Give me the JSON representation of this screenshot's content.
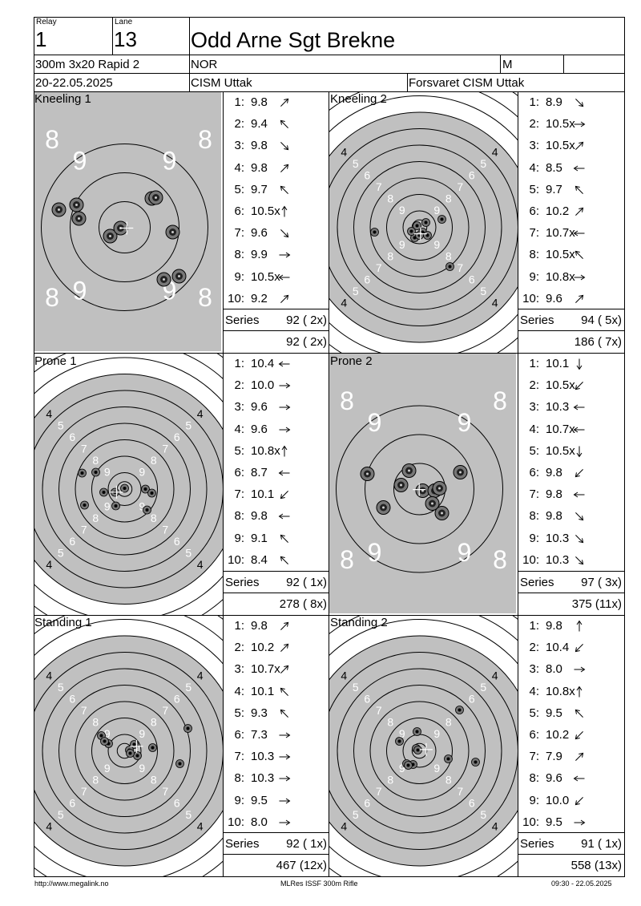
{
  "header": {
    "relay_label": "Relay",
    "relay_value": "1",
    "lane_label": "Lane",
    "lane_value": "13",
    "shooter_name": "Odd Arne Sgt Brekne",
    "event": "300m 3x20 Rapid 2",
    "nation": "NOR",
    "gender": "M",
    "dates": "20-22.05.2025",
    "competition": "CISM Uttak",
    "organizer": "Forsvaret CISM Uttak"
  },
  "series_label": "Series",
  "targets": [
    {
      "title": "Kneeling 1",
      "style": "zoom",
      "shots": [
        {
          "n": "1:",
          "v": "9.8",
          "dir": "ne"
        },
        {
          "n": "2:",
          "v": "9.4",
          "dir": "nw"
        },
        {
          "n": "3:",
          "v": "9.8",
          "dir": "se"
        },
        {
          "n": "4:",
          "v": "9.8",
          "dir": "ne"
        },
        {
          "n": "5:",
          "v": "9.7",
          "dir": "nw"
        },
        {
          "n": "6:",
          "v": "10.5x",
          "dir": "n"
        },
        {
          "n": "7:",
          "v": "9.6",
          "dir": "se"
        },
        {
          "n": "8:",
          "v": "9.9",
          "dir": "e"
        },
        {
          "n": "9:",
          "v": "10.5x",
          "dir": "w"
        },
        {
          "n": "10:",
          "v": "9.2",
          "dir": "ne"
        }
      ],
      "series_total": "92 ( 2x)",
      "cumulative": "92 ( 2x)",
      "hits": [
        [
          -82,
          -22
        ],
        [
          -60,
          -28
        ],
        [
          -57,
          -11
        ],
        [
          34,
          -36
        ],
        [
          39,
          -37
        ],
        [
          -18,
          11
        ],
        [
          60,
          6
        ],
        [
          -5,
          1
        ],
        [
          49,
          65
        ],
        [
          68,
          61
        ]
      ]
    },
    {
      "title": "Kneeling 2",
      "style": "full",
      "shots": [
        {
          "n": "1:",
          "v": "8.9",
          "dir": "se"
        },
        {
          "n": "2:",
          "v": "10.5x",
          "dir": "e"
        },
        {
          "n": "3:",
          "v": "10.5x",
          "dir": "ne"
        },
        {
          "n": "4:",
          "v": "8.5",
          "dir": "w"
        },
        {
          "n": "5:",
          "v": "9.7",
          "dir": "nw"
        },
        {
          "n": "6:",
          "v": "10.2",
          "dir": "ne"
        },
        {
          "n": "7:",
          "v": "10.7x",
          "dir": "w"
        },
        {
          "n": "8:",
          "v": "10.5x",
          "dir": "nw"
        },
        {
          "n": "9:",
          "v": "10.8x",
          "dir": "e"
        },
        {
          "n": "10:",
          "v": "9.6",
          "dir": "ne"
        }
      ],
      "series_total": "94 ( 5x)",
      "cumulative": "186 ( 7x)",
      "hits": [
        [
          38,
          49
        ],
        [
          -6,
          13
        ],
        [
          8,
          -6
        ],
        [
          -56,
          6
        ],
        [
          28,
          -10
        ],
        [
          4,
          6
        ],
        [
          0,
          10
        ],
        [
          -10,
          5
        ],
        [
          10,
          10
        ],
        [
          -3,
          -2
        ]
      ]
    },
    {
      "title": "Prone 1",
      "style": "full",
      "shots": [
        {
          "n": "1:",
          "v": "10.4",
          "dir": "w"
        },
        {
          "n": "2:",
          "v": "10.0",
          "dir": "e"
        },
        {
          "n": "3:",
          "v": "9.6",
          "dir": "e"
        },
        {
          "n": "4:",
          "v": "9.6",
          "dir": "e"
        },
        {
          "n": "5:",
          "v": "10.8x",
          "dir": "n"
        },
        {
          "n": "6:",
          "v": "8.7",
          "dir": "w"
        },
        {
          "n": "7:",
          "v": "10.1",
          "dir": "sw"
        },
        {
          "n": "8:",
          "v": "9.8",
          "dir": "w"
        },
        {
          "n": "9:",
          "v": "9.1",
          "dir": "nw"
        },
        {
          "n": "10:",
          "v": "8.4",
          "dir": "nw"
        }
      ],
      "series_total": "92 ( 1x)",
      "cumulative": "278 ( 8x)",
      "hits": [
        [
          -53,
          -20
        ],
        [
          -36,
          -21
        ],
        [
          -50,
          20
        ],
        [
          -26,
          4
        ],
        [
          -12,
          4
        ],
        [
          0,
          -1
        ],
        [
          26,
          0
        ],
        [
          34,
          5
        ],
        [
          28,
          26
        ],
        [
          -11,
          21
        ]
      ]
    },
    {
      "title": "Prone 2",
      "style": "zoom",
      "shots": [
        {
          "n": "1:",
          "v": "10.1",
          "dir": "s"
        },
        {
          "n": "2:",
          "v": "10.5x",
          "dir": "sw"
        },
        {
          "n": "3:",
          "v": "10.3",
          "dir": "w"
        },
        {
          "n": "4:",
          "v": "10.7x",
          "dir": "w"
        },
        {
          "n": "5:",
          "v": "10.5x",
          "dir": "s"
        },
        {
          "n": "6:",
          "v": "9.8",
          "dir": "sw"
        },
        {
          "n": "7:",
          "v": "9.8",
          "dir": "w"
        },
        {
          "n": "8:",
          "v": "9.8",
          "dir": "se"
        },
        {
          "n": "9:",
          "v": "10.3",
          "dir": "se"
        },
        {
          "n": "10:",
          "v": "10.3",
          "dir": "se"
        }
      ],
      "series_total": "97 ( 3x)",
      "cumulative": "375 (11x)",
      "hits": [
        [
          -65,
          -19
        ],
        [
          -13,
          -23
        ],
        [
          -23,
          -5
        ],
        [
          51,
          -21
        ],
        [
          4,
          2
        ],
        [
          19,
          2
        ],
        [
          25,
          -1
        ],
        [
          16,
          18
        ],
        [
          -45,
          23
        ],
        [
          28,
          30
        ]
      ]
    },
    {
      "title": "Standing 1",
      "style": "full",
      "shots": [
        {
          "n": "1:",
          "v": "9.8",
          "dir": "ne"
        },
        {
          "n": "2:",
          "v": "10.2",
          "dir": "ne"
        },
        {
          "n": "3:",
          "v": "10.7x",
          "dir": "ne"
        },
        {
          "n": "4:",
          "v": "10.1",
          "dir": "nw"
        },
        {
          "n": "5:",
          "v": "9.3",
          "dir": "nw"
        },
        {
          "n": "6:",
          "v": "7.3",
          "dir": "e"
        },
        {
          "n": "7:",
          "v": "10.3",
          "dir": "e"
        },
        {
          "n": "8:",
          "v": "10.3",
          "dir": "e"
        },
        {
          "n": "9:",
          "v": "9.5",
          "dir": "e"
        },
        {
          "n": "10:",
          "v": "8.0",
          "dir": "e"
        }
      ],
      "series_total": "92 ( 1x)",
      "cumulative": "467 (12x)",
      "hits": [
        [
          -29,
          -19
        ],
        [
          -20,
          -9
        ],
        [
          -25,
          -12
        ],
        [
          12,
          -8
        ],
        [
          6,
          -1
        ],
        [
          79,
          -28
        ],
        [
          35,
          -4
        ],
        [
          16,
          6
        ],
        [
          7,
          3
        ],
        [
          69,
          16
        ]
      ]
    },
    {
      "title": "Standing 2",
      "style": "full",
      "shots": [
        {
          "n": "1:",
          "v": "9.8",
          "dir": "n"
        },
        {
          "n": "2:",
          "v": "10.4",
          "dir": "sw"
        },
        {
          "n": "3:",
          "v": "8.0",
          "dir": "e"
        },
        {
          "n": "4:",
          "v": "10.8x",
          "dir": "n"
        },
        {
          "n": "5:",
          "v": "9.5",
          "dir": "nw"
        },
        {
          "n": "6:",
          "v": "10.2",
          "dir": "sw"
        },
        {
          "n": "7:",
          "v": "7.9",
          "dir": "ne"
        },
        {
          "n": "8:",
          "v": "9.6",
          "dir": "w"
        },
        {
          "n": "9:",
          "v": "10.0",
          "dir": "sw"
        },
        {
          "n": "10:",
          "v": "9.5",
          "dir": "e"
        }
      ],
      "series_total": "91 ( 1x)",
      "cumulative": "558 (13x)",
      "hits": [
        [
          50,
          -51
        ],
        [
          -25,
          -12
        ],
        [
          -3,
          -24
        ],
        [
          -4,
          -3
        ],
        [
          -16,
          16
        ],
        [
          -8,
          17
        ],
        [
          -14,
          18
        ],
        [
          36,
          10
        ],
        [
          70,
          14
        ],
        [
          -2,
          -1
        ]
      ]
    }
  ],
  "footer": {
    "left": "http://www.megalink.no",
    "center": "MLRes ISSF 300m Rifle",
    "right": "09:30 - 22.05.2025"
  },
  "colors": {
    "target_grey": "#c0c0c0",
    "hit_dark": "#333333",
    "hit_halo": "#777777"
  }
}
